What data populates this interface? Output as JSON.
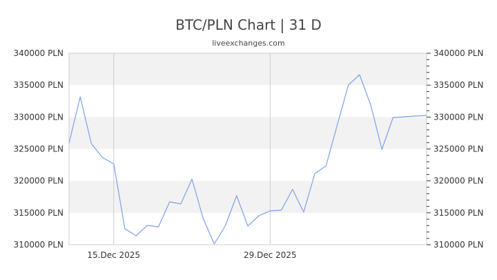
{
  "header": {
    "title": "BTC/PLN Chart | 31 D",
    "subtitle": "liveexchanges.com"
  },
  "colors": {
    "line": "#7b9fe6",
    "band": "#f2f2f2",
    "grid": "#cccccc",
    "axis_text": "#333333",
    "title_text": "#444444"
  },
  "chart_data": {
    "type": "line",
    "title": "BTC/PLN Chart | 31 D",
    "subtitle": "liveexchanges.com",
    "xlabel": "",
    "ylabel": "",
    "ylim": [
      310000,
      340000
    ],
    "y_ticks": [
      340000,
      335000,
      330000,
      325000,
      320000,
      315000,
      310000
    ],
    "y_tick_labels": [
      "340000 PLN",
      "335000 PLN",
      "330000 PLN",
      "325000 PLN",
      "320000 PLN",
      "315000 PLN",
      "310000 PLN"
    ],
    "x_tick_labels": [
      {
        "label": "15.Dec 2025",
        "index": 4
      },
      {
        "label": "29.Dec 2025",
        "index": 18
      }
    ],
    "grid": {
      "horizontal_bands": true,
      "vertical_lines_at_ticks": true
    },
    "legend": null,
    "series": [
      {
        "name": "BTC/PLN",
        "values": [
          325920,
          333180,
          325810,
          323650,
          322670,
          312490,
          311410,
          313030,
          312820,
          316720,
          316390,
          320290,
          314120,
          310110,
          313030,
          317690,
          312930,
          314550,
          315310,
          315420,
          318670,
          315090,
          321160,
          322350,
          328740,
          335020,
          336640,
          331880,
          324950,
          329930,
          330040,
          330150,
          330250
        ]
      }
    ]
  }
}
